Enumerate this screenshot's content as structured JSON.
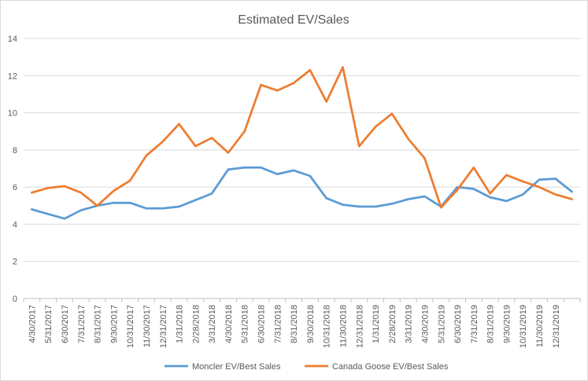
{
  "chart_data": {
    "type": "line",
    "title": "Estimated EV/Sales",
    "xlabel": "",
    "ylabel": "",
    "ylim": [
      0,
      14
    ],
    "yticks": [
      0,
      2,
      4,
      6,
      8,
      10,
      12,
      14
    ],
    "grid": "horizontal",
    "legend_position": "bottom",
    "categories": [
      "4/30/2017",
      "5/31/2017",
      "6/30/2017",
      "7/31/2017",
      "8/31/2017",
      "9/30/2017",
      "10/31/2017",
      "11/30/2017",
      "12/31/2017",
      "1/31/2018",
      "2/28/2018",
      "3/31/2018",
      "4/30/2018",
      "5/31/2018",
      "6/30/2018",
      "7/31/2018",
      "8/31/2018",
      "9/30/2018",
      "10/31/2018",
      "11/30/2018",
      "12/31/2018",
      "1/31/2019",
      "2/28/2019",
      "3/31/2019",
      "4/30/2019",
      "5/31/2019",
      "6/30/2019",
      "7/31/2019",
      "8/31/2019",
      "9/30/2019",
      "10/31/2019",
      "11/30/2019",
      "12/31/2019",
      ""
    ],
    "series": [
      {
        "name": "Moncler EV/Best Sales",
        "color": "#5b9bd5",
        "values": [
          4.8,
          4.55,
          4.3,
          4.75,
          5.0,
          5.15,
          5.15,
          4.85,
          4.85,
          4.95,
          5.3,
          5.65,
          6.95,
          7.05,
          7.05,
          6.7,
          6.9,
          6.6,
          5.4,
          5.05,
          4.95,
          4.95,
          5.1,
          5.35,
          5.5,
          4.95,
          6.0,
          5.9,
          5.45,
          5.25,
          5.6,
          6.4,
          6.45,
          5.75
        ]
      },
      {
        "name": "Canada Goose EV/Best Sales",
        "color": "#ed7d31",
        "values": [
          5.7,
          5.95,
          6.05,
          5.7,
          5.0,
          5.8,
          6.35,
          7.7,
          8.45,
          9.4,
          8.2,
          8.65,
          7.85,
          9.0,
          11.5,
          11.2,
          11.6,
          12.3,
          10.6,
          12.45,
          8.2,
          9.25,
          9.95,
          8.6,
          7.55,
          4.9,
          5.85,
          7.05,
          5.65,
          6.65,
          6.3,
          6.0,
          5.6,
          5.35
        ]
      }
    ]
  }
}
